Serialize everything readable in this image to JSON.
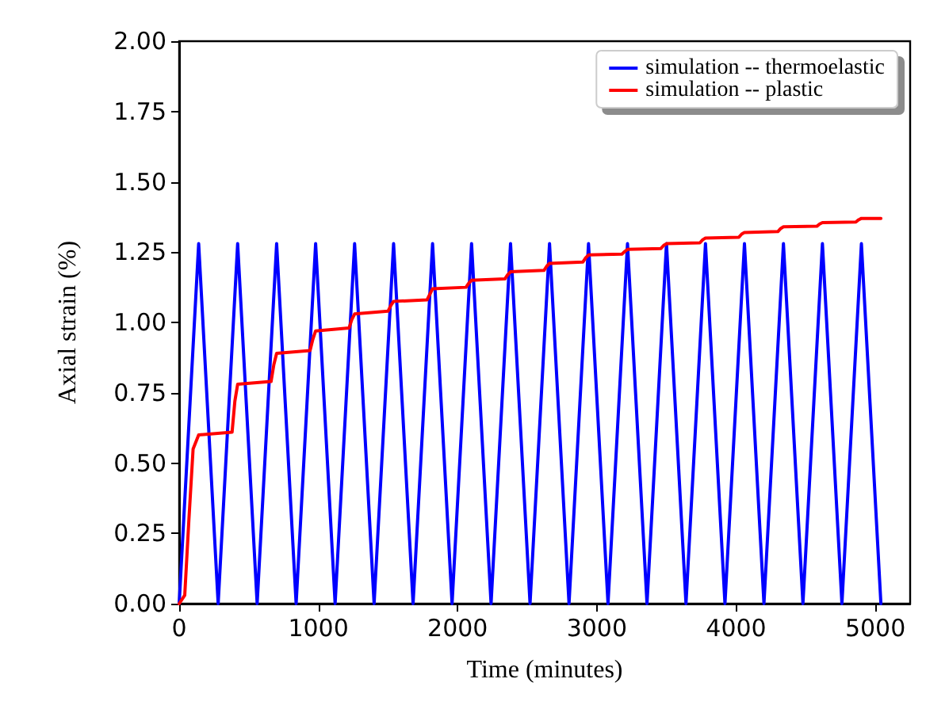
{
  "chart_data": {
    "type": "line",
    "xlabel": "Time (minutes)",
    "ylabel": "Axial strain (%)",
    "xlim": [
      0,
      5250
    ],
    "ylim": [
      0,
      2
    ],
    "xticks": [
      0,
      1000,
      2000,
      3000,
      4000,
      5000
    ],
    "yticks": [
      {
        "value": 0,
        "label": "0.00"
      },
      {
        "value": 0.25,
        "label": "0.25"
      },
      {
        "value": 0.5,
        "label": "0.50"
      },
      {
        "value": 0.75,
        "label": "0.75"
      },
      {
        "value": 1,
        "label": "1.00"
      },
      {
        "value": 1.25,
        "label": "1.25"
      },
      {
        "value": 1.5,
        "label": "1.50"
      },
      {
        "value": 1.75,
        "label": "1.75"
      },
      {
        "value": 2,
        "label": "2.00"
      }
    ],
    "legend": "top right",
    "grid": false,
    "marker": "none",
    "series": [
      {
        "name": "simulation -- thermoelastic",
        "color": "#0000ff",
        "x": [
          0,
          140,
          280,
          420,
          560,
          700,
          840,
          980,
          1120,
          1260,
          1400,
          1540,
          1680,
          1820,
          1960,
          2100,
          2240,
          2380,
          2520,
          2660,
          2800,
          2940,
          3080,
          3220,
          3360,
          3500,
          3640,
          3780,
          3920,
          4060,
          4200,
          4340,
          4480,
          4620,
          4760,
          4900,
          5040
        ],
        "values": [
          0,
          1.28,
          0,
          1.28,
          0,
          1.28,
          0,
          1.28,
          0,
          1.28,
          0,
          1.28,
          0,
          1.28,
          0,
          1.28,
          0,
          1.28,
          0,
          1.28,
          0,
          1.28,
          0,
          1.28,
          0,
          1.28,
          0,
          1.28,
          0,
          1.28,
          0,
          1.28,
          0,
          1.28,
          0,
          1.28,
          0
        ]
      },
      {
        "name": "simulation -- plastic",
        "color": "#ff0000",
        "x": [
          0,
          40,
          70,
          100,
          140,
          380,
          400,
          420,
          660,
          680,
          700,
          940,
          960,
          980,
          1220,
          1240,
          1260,
          1500,
          1520,
          1540,
          1780,
          1800,
          1820,
          2060,
          2080,
          2100,
          2340,
          2360,
          2380,
          2620,
          2640,
          2660,
          2900,
          2920,
          2940,
          3180,
          3200,
          3220,
          3460,
          3480,
          3500,
          3740,
          3760,
          3780,
          4020,
          4040,
          4060,
          4300,
          4320,
          4340,
          4580,
          4600,
          4620,
          4860,
          4880,
          4900,
          5040
        ],
        "values": [
          0,
          0.03,
          0.3,
          0.55,
          0.6,
          0.61,
          0.72,
          0.78,
          0.79,
          0.85,
          0.89,
          0.9,
          0.94,
          0.97,
          0.98,
          1.01,
          1.03,
          1.04,
          1.06,
          1.075,
          1.08,
          1.1,
          1.12,
          1.125,
          1.14,
          1.15,
          1.155,
          1.17,
          1.18,
          1.185,
          1.2,
          1.21,
          1.215,
          1.23,
          1.24,
          1.243,
          1.252,
          1.26,
          1.263,
          1.274,
          1.28,
          1.283,
          1.294,
          1.3,
          1.303,
          1.314,
          1.32,
          1.323,
          1.334,
          1.34,
          1.342,
          1.35,
          1.355,
          1.357,
          1.365,
          1.37,
          1.37
        ]
      }
    ]
  }
}
